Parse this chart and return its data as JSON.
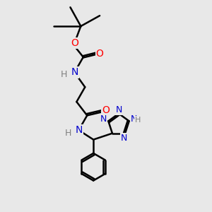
{
  "bg_color": "#e8e8e8",
  "bond_color": "#000000",
  "atom_colors": {
    "O": "#ff0000",
    "N": "#0000cc",
    "H": "#7f7f7f",
    "C": "#000000"
  },
  "figsize": [
    3.0,
    3.0
  ],
  "dpi": 100,
  "xlim": [
    0,
    10
  ],
  "ylim": [
    0,
    10
  ]
}
